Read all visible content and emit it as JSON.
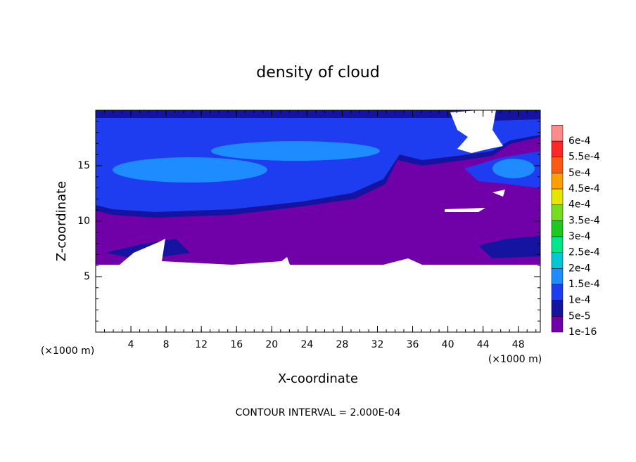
{
  "chart_data": {
    "type": "contour",
    "title": "density of cloud",
    "xlabel": "X-coordinate",
    "ylabel": "Z-coordinate",
    "xunit": "(×1000 m)",
    "yunit": "(×1000 m)",
    "annotation": "CONTOUR INTERVAL = 2.000E-04",
    "xlim": [
      0,
      50.5
    ],
    "ylim": [
      0,
      20
    ],
    "xticks": [
      4,
      8,
      12,
      16,
      20,
      24,
      28,
      32,
      36,
      40,
      44,
      48
    ],
    "yticks": [
      5,
      10,
      15
    ],
    "levels": [
      {
        "value": 1e-16,
        "label": "1e-16"
      },
      {
        "value": 5e-05,
        "label": "5e-5"
      },
      {
        "value": 0.0001,
        "label": "1e-4"
      },
      {
        "value": 0.00015,
        "label": "1.5e-4"
      },
      {
        "value": 0.0002,
        "label": "2e-4"
      },
      {
        "value": 0.00025,
        "label": "2.5e-4"
      },
      {
        "value": 0.0003,
        "label": "3e-4"
      },
      {
        "value": 0.00035,
        "label": "3.5e-4"
      },
      {
        "value": 0.0004,
        "label": "4e-4"
      },
      {
        "value": 0.00045,
        "label": "4.5e-4"
      },
      {
        "value": 0.0005,
        "label": "5e-4"
      },
      {
        "value": 0.00055,
        "label": "5.5e-4"
      },
      {
        "value": 0.0006,
        "label": "6e-4"
      }
    ],
    "colors": [
      "#7000a8",
      "#1414a0",
      "#1e3cf0",
      "#1e8cff",
      "#00c8d2",
      "#00e68c",
      "#1ec81e",
      "#78dc1e",
      "#e6e600",
      "#ffa000",
      "#ff5a14",
      "#ff2828",
      "#ff8c8c"
    ]
  }
}
